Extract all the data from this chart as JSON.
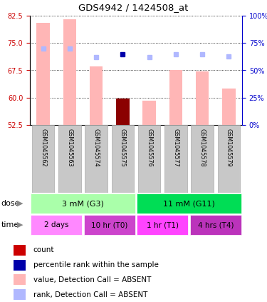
{
  "title": "GDS4942 / 1424508_at",
  "samples": [
    "GSM1045562",
    "GSM1045563",
    "GSM1045574",
    "GSM1045575",
    "GSM1045576",
    "GSM1045577",
    "GSM1045578",
    "GSM1045579"
  ],
  "value_bars": [
    80.5,
    81.5,
    68.5,
    59.8,
    59.1,
    67.5,
    67.2,
    62.5
  ],
  "rank_dots_pct": [
    70,
    70,
    62,
    65,
    62,
    65,
    65,
    63
  ],
  "count_bar_idx": 3,
  "percentile_dot_idx": 3,
  "ylim_left": [
    52.5,
    82.5
  ],
  "yticks_left": [
    52.5,
    60.0,
    67.5,
    75.0,
    82.5
  ],
  "ylim_right": [
    0,
    100
  ],
  "yticks_right": [
    0,
    25,
    50,
    75,
    100
  ],
  "color_value_bar": "#FFB6B6",
  "color_count_bar": "#8B0000",
  "color_rank_dot": "#B0B8FF",
  "color_percentile_dot": "#0000AA",
  "color_left_axis": "#CC0000",
  "color_right_axis": "#0000CC",
  "dose_groups": [
    {
      "label": "3 mM (G3)",
      "start": 0,
      "end": 3,
      "color": "#AAFFAA"
    },
    {
      "label": "11 mM (G11)",
      "start": 4,
      "end": 7,
      "color": "#00DD55"
    }
  ],
  "time_colors": [
    "#FF88FF",
    "#CC44CC",
    "#FF44FF",
    "#BB33BB"
  ],
  "time_groups": [
    {
      "label": "2 days",
      "start": 0,
      "end": 1
    },
    {
      "label": "10 hr (T0)",
      "start": 2,
      "end": 3
    },
    {
      "label": "1 hr (T1)",
      "start": 4,
      "end": 5
    },
    {
      "label": "4 hrs (T4)",
      "start": 6,
      "end": 7
    }
  ],
  "legend_items": [
    {
      "color": "#CC0000",
      "label": "count"
    },
    {
      "color": "#0000AA",
      "label": "percentile rank within the sample"
    },
    {
      "color": "#FFB6B6",
      "label": "value, Detection Call = ABSENT"
    },
    {
      "color": "#B0B8FF",
      "label": "rank, Detection Call = ABSENT"
    }
  ],
  "dose_label": "dose",
  "time_label": "time"
}
